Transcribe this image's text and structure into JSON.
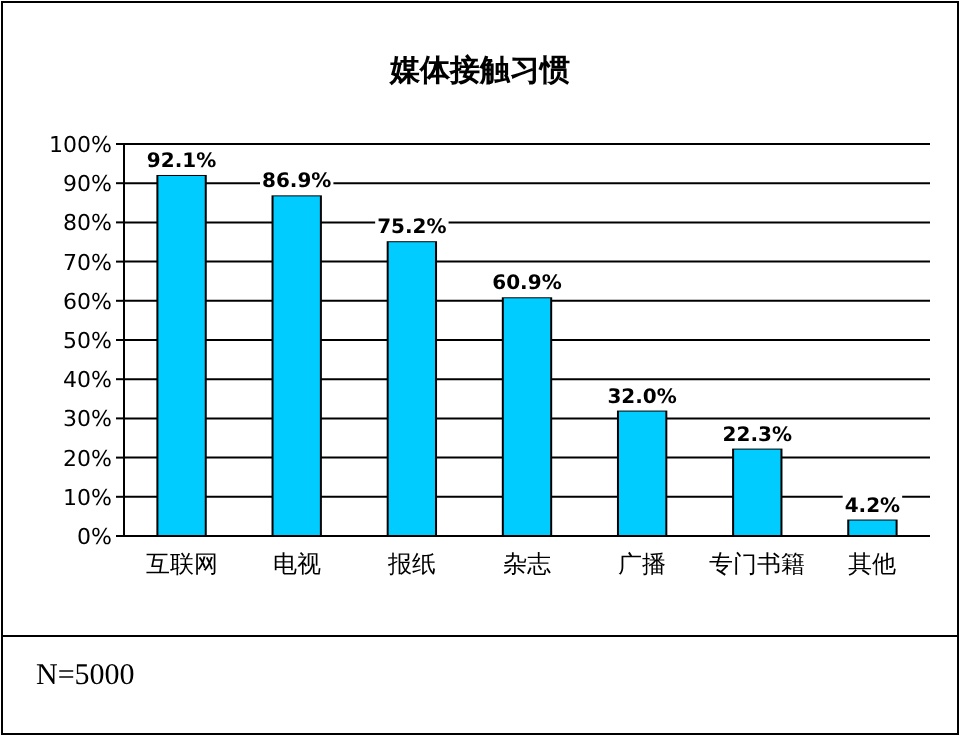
{
  "chart_data": {
    "type": "bar",
    "title": "媒体接触习惯",
    "categories": [
      "互联网",
      "电视",
      "报纸",
      "杂志",
      "广播",
      "专门书籍",
      "其他"
    ],
    "values": [
      92.1,
      86.9,
      75.2,
      60.9,
      32.0,
      22.3,
      4.2
    ],
    "value_labels": [
      "92.1%",
      "86.9%",
      "75.2%",
      "60.9%",
      "32.0%",
      "22.3%",
      "4.2%"
    ],
    "color": "#00ccff",
    "ylim": [
      0,
      100
    ],
    "yticks": [
      {
        "value": 0,
        "label": "0%"
      },
      {
        "value": 10,
        "label": "10%"
      },
      {
        "value": 20,
        "label": "20%"
      },
      {
        "value": 30,
        "label": "30%"
      },
      {
        "value": 40,
        "label": "40%"
      },
      {
        "value": 50,
        "label": "50%"
      },
      {
        "value": 60,
        "label": "60%"
      },
      {
        "value": 70,
        "label": "70%"
      },
      {
        "value": 80,
        "label": "80%"
      },
      {
        "value": 90,
        "label": "90%"
      },
      {
        "value": 100,
        "label": "100%"
      }
    ],
    "grid": "y",
    "annotations": [
      "N=5000"
    ]
  }
}
